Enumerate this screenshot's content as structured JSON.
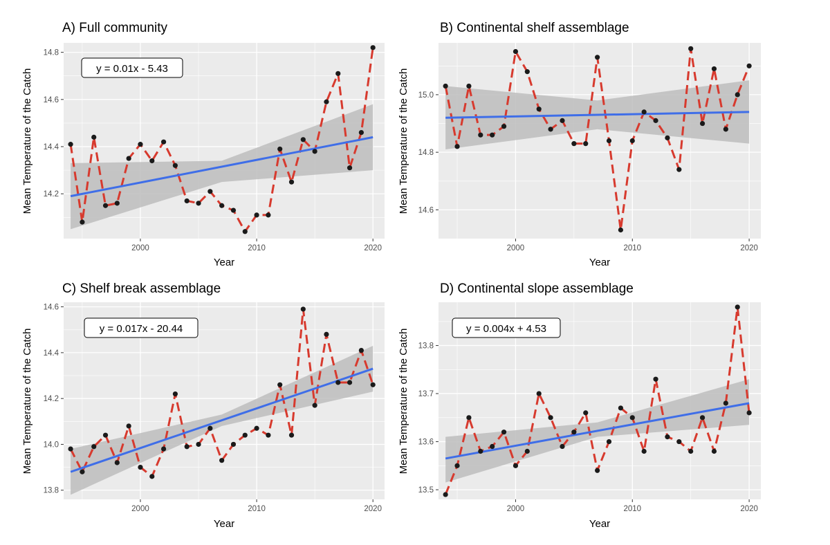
{
  "colors": {
    "panel_bg": "#ebebeb",
    "grid": "#ffffff",
    "data_line": "#d73a2e",
    "point": "#1a1a1a",
    "trend": "#3f6ee8",
    "ci_band": "#bdbdbd"
  },
  "chart_data": [
    {
      "id": "A",
      "type": "line",
      "title": "A) Full community",
      "xlabel": "Year",
      "ylabel": "Mean Temperature of the Catch",
      "equation": "y = 0.01x - 5.43",
      "xlim": [
        1993.4,
        2021.0
      ],
      "ylim": [
        14.01,
        14.84
      ],
      "xticks": [
        2000,
        2010,
        2020
      ],
      "yticks": [
        14.2,
        14.4,
        14.6,
        14.8
      ],
      "x": [
        1994,
        1995,
        1996,
        1997,
        1998,
        1999,
        2000,
        2001,
        2002,
        2003,
        2004,
        2005,
        2006,
        2007,
        2008,
        2009,
        2010,
        2011,
        2012,
        2013,
        2014,
        2015,
        2016,
        2017,
        2018,
        2019,
        2020
      ],
      "y": [
        14.41,
        14.08,
        14.44,
        14.15,
        14.16,
        14.35,
        14.41,
        14.34,
        14.42,
        14.32,
        14.17,
        14.16,
        14.21,
        14.15,
        14.13,
        14.04,
        14.11,
        14.11,
        14.39,
        14.25,
        14.43,
        14.38,
        14.59,
        14.71,
        14.31,
        14.46,
        14.82
      ],
      "trend": {
        "x": [
          1994,
          2020
        ],
        "y": [
          14.19,
          14.44
        ]
      },
      "band": {
        "x": [
          1994,
          2007,
          2020
        ],
        "upper": [
          14.33,
          14.34,
          14.58
        ],
        "lower": [
          14.05,
          14.25,
          14.3
        ]
      }
    },
    {
      "id": "B",
      "type": "line",
      "title": "B) Continental shelf assemblage",
      "xlabel": "Year",
      "ylabel": "Mean Temperature of the Catch",
      "equation": "",
      "xlim": [
        1993.4,
        2021.0
      ],
      "ylim": [
        14.5,
        15.18
      ],
      "xticks": [
        2000,
        2010,
        2020
      ],
      "yticks": [
        14.6,
        14.8,
        15.0
      ],
      "x": [
        1994,
        1995,
        1996,
        1997,
        1998,
        1999,
        2000,
        2001,
        2002,
        2003,
        2004,
        2005,
        2006,
        2007,
        2008,
        2009,
        2010,
        2011,
        2012,
        2013,
        2014,
        2015,
        2016,
        2017,
        2018,
        2019,
        2020
      ],
      "y": [
        15.03,
        14.82,
        15.03,
        14.86,
        14.86,
        14.89,
        15.15,
        15.08,
        14.95,
        14.88,
        14.91,
        14.83,
        14.83,
        15.13,
        14.84,
        14.53,
        14.84,
        14.94,
        14.91,
        14.85,
        14.74,
        15.16,
        14.9,
        15.09,
        14.88,
        15.0,
        15.1
      ],
      "trend": {
        "x": [
          1994,
          2020
        ],
        "y": [
          14.92,
          14.94
        ]
      },
      "band": {
        "x": [
          1994,
          2007,
          2020
        ],
        "upper": [
          15.03,
          14.98,
          15.05
        ],
        "lower": [
          14.81,
          14.88,
          14.83
        ]
      }
    },
    {
      "id": "C",
      "type": "line",
      "title": "C) Shelf break assemblage",
      "xlabel": "Year",
      "ylabel": "Mean Temperature of the Catch",
      "equation": "y = 0.017x - 20.44",
      "xlim": [
        1993.4,
        2021.0
      ],
      "ylim": [
        13.76,
        14.62
      ],
      "xticks": [
        2000,
        2010,
        2020
      ],
      "yticks": [
        13.8,
        14.0,
        14.2,
        14.4,
        14.6
      ],
      "x": [
        1994,
        1995,
        1996,
        1997,
        1998,
        1999,
        2000,
        2001,
        2002,
        2003,
        2004,
        2005,
        2006,
        2007,
        2008,
        2009,
        2010,
        2011,
        2012,
        2013,
        2014,
        2015,
        2016,
        2017,
        2018,
        2019,
        2020
      ],
      "y": [
        13.98,
        13.88,
        13.99,
        14.04,
        13.92,
        14.08,
        13.9,
        13.86,
        13.98,
        14.22,
        13.99,
        14.0,
        14.07,
        13.93,
        14.0,
        14.04,
        14.07,
        14.04,
        14.26,
        14.04,
        14.59,
        14.17,
        14.48,
        14.27,
        14.27,
        14.41,
        14.26
      ],
      "trend": {
        "x": [
          1994,
          2020
        ],
        "y": [
          13.88,
          14.33
        ]
      },
      "band": {
        "x": [
          1994,
          2007,
          2020
        ],
        "upper": [
          13.98,
          14.13,
          14.43
        ],
        "lower": [
          13.78,
          14.08,
          14.23
        ]
      }
    },
    {
      "id": "D",
      "type": "line",
      "title": "D) Continental slope assemblage",
      "xlabel": "Year",
      "ylabel": "Mean Temperature of the Catch",
      "equation": "y = 0.004x + 4.53",
      "xlim": [
        1993.4,
        2021.0
      ],
      "ylim": [
        13.48,
        13.89
      ],
      "xticks": [
        2000,
        2010,
        2020
      ],
      "yticks": [
        13.5,
        13.6,
        13.7,
        13.8
      ],
      "x": [
        1994,
        1995,
        1996,
        1997,
        1998,
        1999,
        2000,
        2001,
        2002,
        2003,
        2004,
        2005,
        2006,
        2007,
        2008,
        2009,
        2010,
        2011,
        2012,
        2013,
        2014,
        2015,
        2016,
        2017,
        2018,
        2019,
        2020
      ],
      "y": [
        13.49,
        13.55,
        13.65,
        13.58,
        13.59,
        13.62,
        13.55,
        13.58,
        13.7,
        13.65,
        13.59,
        13.62,
        13.66,
        13.54,
        13.6,
        13.67,
        13.65,
        13.58,
        13.73,
        13.61,
        13.6,
        13.58,
        13.65,
        13.58,
        13.68,
        13.88,
        13.66
      ],
      "trend": {
        "x": [
          1994,
          2020
        ],
        "y": [
          13.565,
          13.68
        ]
      },
      "band": {
        "x": [
          1994,
          2007,
          2020
        ],
        "upper": [
          13.61,
          13.64,
          13.73
        ],
        "lower": [
          13.515,
          13.61,
          13.635
        ]
      }
    }
  ]
}
